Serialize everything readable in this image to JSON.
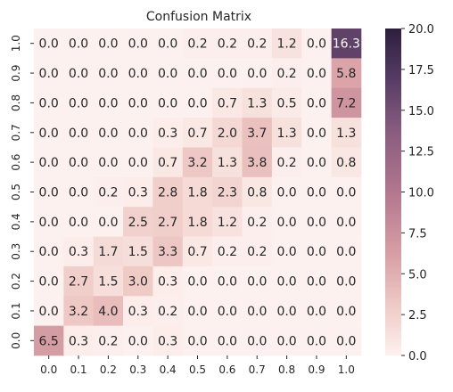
{
  "chart_data": {
    "type": "heatmap",
    "title": "Confusion Matrix",
    "xlabel": "",
    "ylabel": "",
    "x_categories": [
      "0.0",
      "0.1",
      "0.2",
      "0.3",
      "0.4",
      "0.5",
      "0.6",
      "0.7",
      "0.8",
      "0.9",
      "1.0"
    ],
    "y_categories_top_to_bottom": [
      "1.0",
      "0.9",
      "0.8",
      "0.7",
      "0.6",
      "0.5",
      "0.4",
      "0.3",
      "0.2",
      "0.1",
      "0.0"
    ],
    "values": [
      [
        0.0,
        0.0,
        0.0,
        0.0,
        0.0,
        0.2,
        0.2,
        0.2,
        1.2,
        0.0,
        16.3
      ],
      [
        0.0,
        0.0,
        0.0,
        0.0,
        0.0,
        0.0,
        0.0,
        0.0,
        0.2,
        0.0,
        5.8
      ],
      [
        0.0,
        0.0,
        0.0,
        0.0,
        0.0,
        0.0,
        0.7,
        1.3,
        0.5,
        0.0,
        7.2
      ],
      [
        0.0,
        0.0,
        0.0,
        0.0,
        0.3,
        0.7,
        2.0,
        3.7,
        1.3,
        0.0,
        1.3
      ],
      [
        0.0,
        0.0,
        0.0,
        0.0,
        0.7,
        3.2,
        1.3,
        3.8,
        0.2,
        0.0,
        0.8
      ],
      [
        0.0,
        0.0,
        0.2,
        0.3,
        2.8,
        1.8,
        2.3,
        0.8,
        0.0,
        0.0,
        0.0
      ],
      [
        0.0,
        0.0,
        0.0,
        2.5,
        2.7,
        1.8,
        1.2,
        0.2,
        0.0,
        0.0,
        0.0
      ],
      [
        0.0,
        0.3,
        1.7,
        1.5,
        3.3,
        0.7,
        0.2,
        0.2,
        0.0,
        0.0,
        0.0
      ],
      [
        0.0,
        2.7,
        1.5,
        3.0,
        0.3,
        0.0,
        0.0,
        0.0,
        0.0,
        0.0,
        0.0
      ],
      [
        0.0,
        3.2,
        4.0,
        0.3,
        0.2,
        0.0,
        0.0,
        0.0,
        0.0,
        0.0,
        0.0
      ],
      [
        6.5,
        0.3,
        0.2,
        0.0,
        0.3,
        0.0,
        0.0,
        0.0,
        0.0,
        0.0,
        0.0
      ]
    ],
    "vmin": 0,
    "vmax": 20,
    "colorbar_ticks": [
      0.0,
      2.5,
      5.0,
      7.5,
      10.0,
      12.5,
      15.0,
      17.5,
      20.0
    ],
    "colorbar_tick_labels": [
      "0.0",
      "2.5",
      "5.0",
      "7.5",
      "10.0",
      "12.5",
      "15.0",
      "17.5",
      "20.0"
    ],
    "colormap_stops": [
      {
        "v": 0.0,
        "color": "#fdf1ef"
      },
      {
        "v": 0.15,
        "color": "#efcbc6"
      },
      {
        "v": 0.3,
        "color": "#d9a1a6"
      },
      {
        "v": 0.5,
        "color": "#b3768f"
      },
      {
        "v": 0.7,
        "color": "#855a7e"
      },
      {
        "v": 0.85,
        "color": "#553b63"
      },
      {
        "v": 1.0,
        "color": "#2d1e3e"
      }
    ],
    "legend": "colorbar-right",
    "grid": false
  }
}
